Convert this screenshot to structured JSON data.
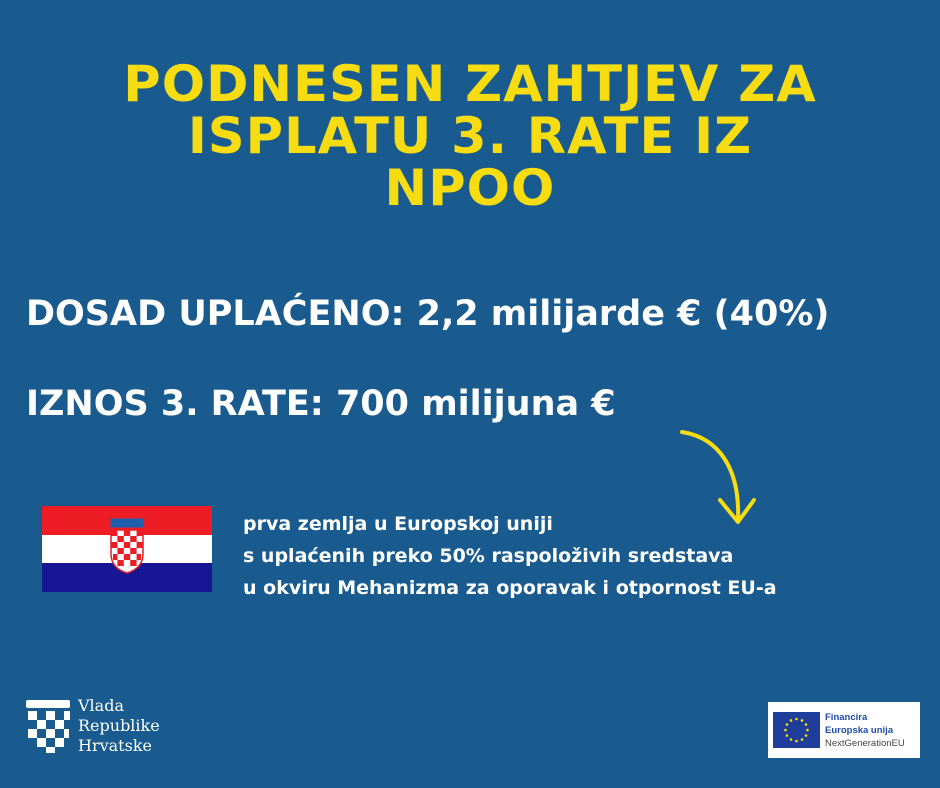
{
  "title": {
    "lines": [
      "PODNESEN ZAHTJEV ZA",
      "ISPLATU 3. RATE IZ",
      "NPOO"
    ]
  },
  "stats": {
    "paid": "DOSAD UPLAĆENO: 2,2 milijarde € (40%)",
    "installment": "IZNOS 3. RATE: 700 milijuna €"
  },
  "description": {
    "lines": [
      "prva zemlja u Europskoj uniji",
      "s uplaćenih preko 50% raspoloživih sredstava",
      "u okviru Mehanizma za oporavak i otpornost EU-a"
    ]
  },
  "government_logo": {
    "lines": [
      "Vlada",
      "Republike",
      "Hrvatske"
    ]
  },
  "eu_badge": {
    "line1": "Financira",
    "line2": "Europska unija",
    "line3": "NextGenerationEU"
  },
  "colors": {
    "background": "#195b8e",
    "accent": "#f7dc12",
    "flag_red": "#ee1c25",
    "flag_white": "#ffffff",
    "flag_blue": "#171796"
  }
}
